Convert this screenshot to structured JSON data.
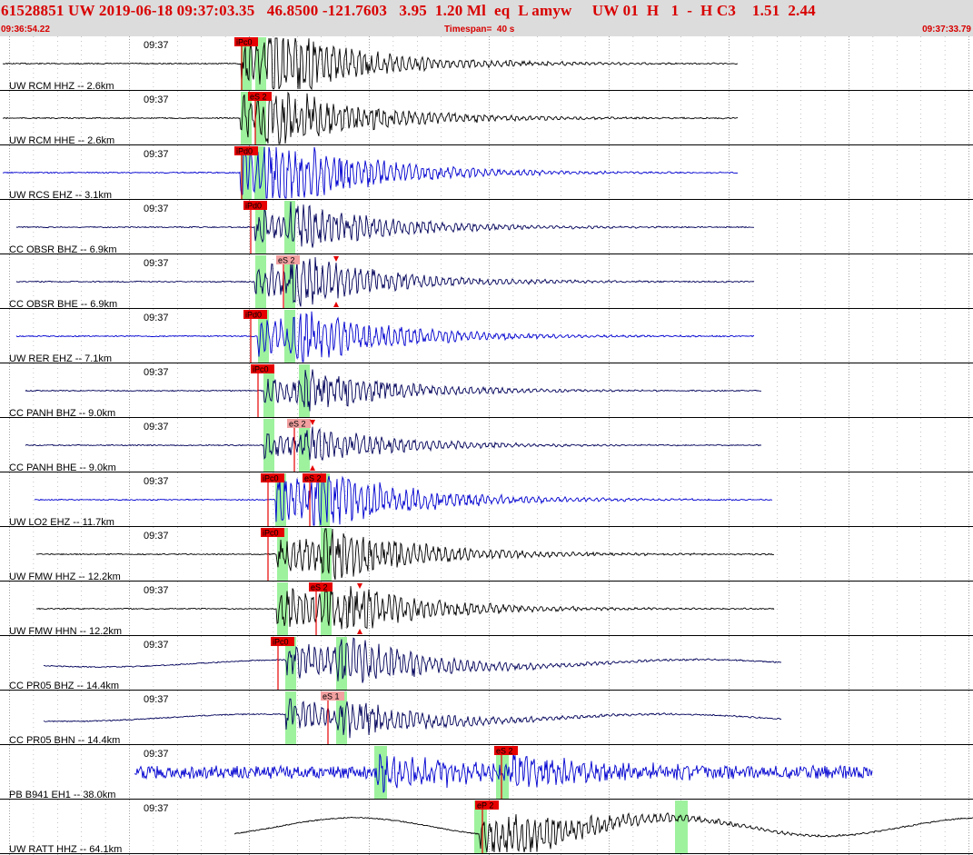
{
  "header": {
    "title": "61528851 UW 2019-06-18 09:37:03.35   46.8500 -121.7603   3.95  1.20 Ml  eq  L amyw     UW 01  H   1  -  H C3    1.51  2.44",
    "start_time": "09:36:54.22",
    "timespan_label": "Timespan=  40 s",
    "end_time": "09:37:33.79"
  },
  "colors": {
    "header_bg": "#dcdcdc",
    "header_text": "#d80000",
    "pick_red": "#e60000",
    "pick_label_bg": "#f2a0a0",
    "window_green": "#9ef29e",
    "trace_black": "#000000",
    "trace_blue": "#0000d0",
    "trace_navy": "#00005a"
  },
  "traces": [
    {
      "label": "UW RCM HHZ -- 2.6km",
      "time": "09:37",
      "color": "black",
      "picks": [
        {
          "label": "iPc0"
        }
      ]
    },
    {
      "label": "UW RCM HHE -- 2.6km",
      "time": "09:37",
      "color": "black",
      "picks": [
        {
          "label": "eS 2"
        }
      ]
    },
    {
      "label": "UW RCS EHZ -- 3.1km",
      "time": "09:37",
      "color": "blue",
      "picks": [
        {
          "label": "iPd0"
        }
      ]
    },
    {
      "label": "CC OBSR BHZ -- 6.9km",
      "time": "09:37",
      "color": "navy",
      "picks": [
        {
          "label": "iPd0"
        }
      ]
    },
    {
      "label": "CC OBSR BHE -- 6.9km",
      "time": "09:37",
      "color": "navy",
      "picks": [
        {
          "label": "eS 2"
        }
      ]
    },
    {
      "label": "UW RER EHZ -- 7.1km",
      "time": "09:37",
      "color": "blue",
      "picks": [
        {
          "label": "iPd0"
        }
      ]
    },
    {
      "label": "CC PANH BHZ -- 9.0km",
      "time": "09:37",
      "color": "navy",
      "picks": [
        {
          "label": "iPc0"
        }
      ]
    },
    {
      "label": "CC PANH BHE -- 9.0km",
      "time": "09:37",
      "color": "navy",
      "picks": [
        {
          "label": "eS 2"
        }
      ]
    },
    {
      "label": "UW LO2 EHZ -- 11.7km",
      "time": "09:37",
      "color": "blue",
      "picks": [
        {
          "label": "iPc0"
        },
        {
          "label": "eS 2"
        }
      ]
    },
    {
      "label": "UW FMW HHZ -- 12.2km",
      "time": "09:37",
      "color": "black",
      "picks": [
        {
          "label": "iPc0"
        }
      ]
    },
    {
      "label": "UW FMW HHN -- 12.2km",
      "time": "09:37",
      "color": "black",
      "picks": [
        {
          "label": "eS 2"
        }
      ]
    },
    {
      "label": "CC PR05 BHZ -- 14.4km",
      "time": "09:37",
      "color": "navy",
      "picks": [
        {
          "label": "iPc0"
        }
      ]
    },
    {
      "label": "CC PR05 BHN -- 14.4km",
      "time": "09:37",
      "color": "navy",
      "picks": [
        {
          "label": "eS 1"
        }
      ]
    },
    {
      "label": "PB B941 EH1 -- 38.0km",
      "time": "09:37",
      "color": "blue",
      "picks": [
        {
          "label": "eS 2"
        }
      ]
    },
    {
      "label": "UW RATT HHZ -- 64.1km",
      "time": "09:37",
      "color": "black",
      "picks": [
        {
          "label": "eP 2"
        }
      ]
    }
  ]
}
